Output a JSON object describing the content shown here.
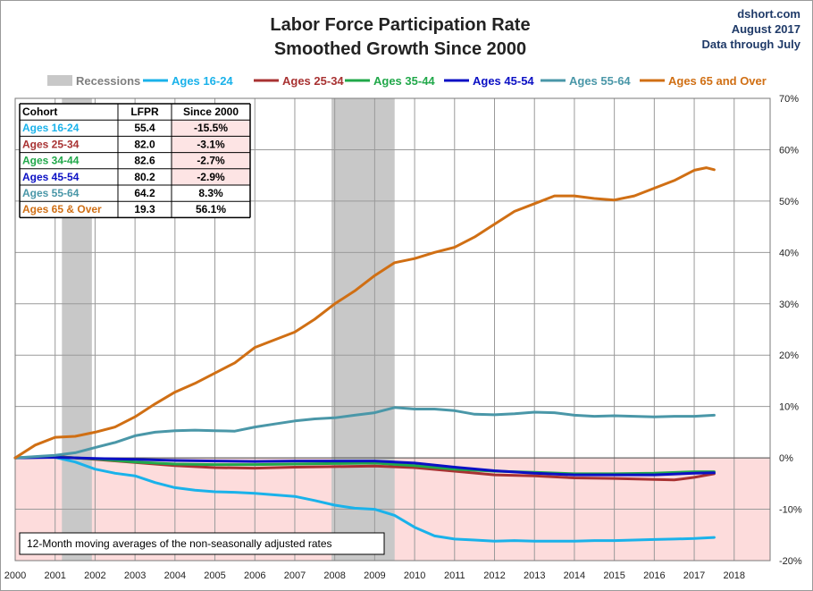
{
  "chart_data": {
    "type": "line",
    "title": "Labor Force Participation Rate",
    "subtitle": "Smoothed Growth Since 2000",
    "source": [
      "dshort.com",
      "August 2017",
      "Data through July"
    ],
    "xlim": [
      2000,
      2018.9
    ],
    "ylim": [
      -20,
      70
    ],
    "x_ticks": [
      2000,
      2001,
      2002,
      2003,
      2004,
      2005,
      2006,
      2007,
      2008,
      2009,
      2010,
      2011,
      2012,
      2013,
      2014,
      2015,
      2016,
      2017,
      2018
    ],
    "x_tick_labels": [
      "2000",
      "2001",
      "2002",
      "2003",
      "2004",
      "2005",
      "2006",
      "2007",
      "2008",
      "2009",
      "2010",
      "2011",
      "2012",
      "2013",
      "2014",
      "2015",
      "2016",
      "2017",
      "2018"
    ],
    "y_ticks": [
      -20,
      -10,
      0,
      10,
      20,
      30,
      40,
      50,
      60,
      70
    ],
    "y_tick_labels": [
      "-20%",
      "-10%",
      "0%",
      "10%",
      "20%",
      "30%",
      "40%",
      "50%",
      "60%",
      "70%"
    ],
    "grid": true,
    "negative_shading_color": "#fddcdc",
    "recessions": {
      "label": "Recessions",
      "color": "#c8c8c8",
      "periods": [
        [
          2001.17,
          2001.92
        ],
        [
          2007.92,
          2009.5
        ]
      ]
    },
    "series": [
      {
        "name": "Ages 16-24",
        "color": "#1ab2ea",
        "points": [
          [
            2000,
            0
          ],
          [
            2000.5,
            0.2
          ],
          [
            2001,
            0.1
          ],
          [
            2001.5,
            -0.8
          ],
          [
            2002,
            -2.2
          ],
          [
            2002.5,
            -3
          ],
          [
            2003,
            -3.5
          ],
          [
            2003.5,
            -4.8
          ],
          [
            2004,
            -5.8
          ],
          [
            2004.5,
            -6.3
          ],
          [
            2005,
            -6.6
          ],
          [
            2005.5,
            -6.7
          ],
          [
            2006,
            -6.9
          ],
          [
            2006.5,
            -7.2
          ],
          [
            2007,
            -7.5
          ],
          [
            2007.5,
            -8.3
          ],
          [
            2008,
            -9.2
          ],
          [
            2008.5,
            -9.8
          ],
          [
            2009,
            -10
          ],
          [
            2009.5,
            -11.2
          ],
          [
            2010,
            -13.5
          ],
          [
            2010.5,
            -15.2
          ],
          [
            2011,
            -15.8
          ],
          [
            2011.5,
            -16
          ],
          [
            2012,
            -16.2
          ],
          [
            2012.5,
            -16.1
          ],
          [
            2013,
            -16.2
          ],
          [
            2013.5,
            -16.2
          ],
          [
            2014,
            -16.2
          ],
          [
            2014.5,
            -16.1
          ],
          [
            2015,
            -16.1
          ],
          [
            2015.5,
            -16
          ],
          [
            2016,
            -15.9
          ],
          [
            2016.5,
            -15.8
          ],
          [
            2017,
            -15.7
          ],
          [
            2017.5,
            -15.5
          ]
        ]
      },
      {
        "name": "Ages 25-34",
        "color": "#a83232",
        "points": [
          [
            2000,
            0
          ],
          [
            2001,
            0.3
          ],
          [
            2002,
            -0.3
          ],
          [
            2003,
            -0.9
          ],
          [
            2004,
            -1.5
          ],
          [
            2005,
            -1.9
          ],
          [
            2006,
            -2
          ],
          [
            2007,
            -1.8
          ],
          [
            2008,
            -1.7
          ],
          [
            2009,
            -1.6
          ],
          [
            2010,
            -1.9
          ],
          [
            2011,
            -2.6
          ],
          [
            2012,
            -3.3
          ],
          [
            2013,
            -3.5
          ],
          [
            2014,
            -3.9
          ],
          [
            2015,
            -4
          ],
          [
            2016,
            -4.2
          ],
          [
            2016.5,
            -4.3
          ],
          [
            2017,
            -3.8
          ],
          [
            2017.5,
            -3.1
          ]
        ]
      },
      {
        "name": "Ages 35-44",
        "color": "#21a84a",
        "points": [
          [
            2000,
            0
          ],
          [
            2001,
            0.2
          ],
          [
            2002,
            -0.2
          ],
          [
            2003,
            -0.8
          ],
          [
            2004,
            -1.2
          ],
          [
            2005,
            -1.3
          ],
          [
            2006,
            -1.3
          ],
          [
            2007,
            -1.2
          ],
          [
            2008,
            -1.1
          ],
          [
            2009,
            -1
          ],
          [
            2010,
            -1.5
          ],
          [
            2011,
            -2.2
          ],
          [
            2012,
            -2.6
          ],
          [
            2013,
            -2.8
          ],
          [
            2014,
            -3.1
          ],
          [
            2015,
            -3.1
          ],
          [
            2016,
            -3
          ],
          [
            2017,
            -2.7
          ],
          [
            2017.5,
            -2.7
          ]
        ]
      },
      {
        "name": "Ages 45-54",
        "color": "#0b10c4",
        "points": [
          [
            2000,
            0
          ],
          [
            2001,
            0.1
          ],
          [
            2002,
            -0.1
          ],
          [
            2003,
            -0.3
          ],
          [
            2004,
            -0.5
          ],
          [
            2005,
            -0.6
          ],
          [
            2006,
            -0.7
          ],
          [
            2007,
            -0.6
          ],
          [
            2008,
            -0.6
          ],
          [
            2009,
            -0.6
          ],
          [
            2010,
            -1
          ],
          [
            2011,
            -1.8
          ],
          [
            2012,
            -2.5
          ],
          [
            2013,
            -3
          ],
          [
            2014,
            -3.3
          ],
          [
            2015,
            -3.3
          ],
          [
            2016,
            -3.3
          ],
          [
            2017,
            -3
          ],
          [
            2017.5,
            -2.9
          ]
        ]
      },
      {
        "name": "Ages 55-64",
        "color": "#4a97a8",
        "points": [
          [
            2000,
            0
          ],
          [
            2001,
            0.5
          ],
          [
            2001.5,
            1
          ],
          [
            2002,
            2
          ],
          [
            2002.5,
            3
          ],
          [
            2003,
            4.3
          ],
          [
            2003.5,
            5
          ],
          [
            2004,
            5.3
          ],
          [
            2004.5,
            5.4
          ],
          [
            2005,
            5.3
          ],
          [
            2005.5,
            5.2
          ],
          [
            2006,
            6
          ],
          [
            2006.5,
            6.6
          ],
          [
            2007,
            7.2
          ],
          [
            2007.5,
            7.6
          ],
          [
            2008,
            7.8
          ],
          [
            2008.5,
            8.3
          ],
          [
            2009,
            8.8
          ],
          [
            2009.5,
            9.8
          ],
          [
            2010,
            9.5
          ],
          [
            2010.5,
            9.5
          ],
          [
            2011,
            9.2
          ],
          [
            2011.5,
            8.5
          ],
          [
            2012,
            8.4
          ],
          [
            2012.5,
            8.6
          ],
          [
            2013,
            8.9
          ],
          [
            2013.5,
            8.8
          ],
          [
            2014,
            8.3
          ],
          [
            2014.5,
            8.1
          ],
          [
            2015,
            8.2
          ],
          [
            2015.5,
            8.1
          ],
          [
            2016,
            8
          ],
          [
            2016.5,
            8.1
          ],
          [
            2017,
            8.1
          ],
          [
            2017.5,
            8.3
          ]
        ]
      },
      {
        "name": "Ages 65 and Over",
        "color": "#d06f14",
        "points": [
          [
            2000,
            0
          ],
          [
            2000.5,
            2.5
          ],
          [
            2001,
            4
          ],
          [
            2001.5,
            4.2
          ],
          [
            2002,
            5
          ],
          [
            2002.5,
            6
          ],
          [
            2003,
            8
          ],
          [
            2003.5,
            10.5
          ],
          [
            2004,
            12.8
          ],
          [
            2004.5,
            14.5
          ],
          [
            2005,
            16.5
          ],
          [
            2005.5,
            18.5
          ],
          [
            2006,
            21.5
          ],
          [
            2006.5,
            23
          ],
          [
            2007,
            24.5
          ],
          [
            2007.5,
            27
          ],
          [
            2008,
            30
          ],
          [
            2008.5,
            32.5
          ],
          [
            2009,
            35.5
          ],
          [
            2009.5,
            38
          ],
          [
            2010,
            38.8
          ],
          [
            2010.5,
            40
          ],
          [
            2011,
            41
          ],
          [
            2011.5,
            43
          ],
          [
            2012,
            45.5
          ],
          [
            2012.5,
            48
          ],
          [
            2013,
            49.5
          ],
          [
            2013.5,
            51
          ],
          [
            2014,
            51
          ],
          [
            2014.5,
            50.5
          ],
          [
            2015,
            50.2
          ],
          [
            2015.5,
            51
          ],
          [
            2016,
            52.5
          ],
          [
            2016.5,
            54
          ],
          [
            2017,
            56
          ],
          [
            2017.3,
            56.5
          ],
          [
            2017.5,
            56.1
          ]
        ]
      }
    ],
    "table": {
      "headers": [
        "Cohort",
        "LFPR",
        "Since 2000"
      ],
      "rows": [
        {
          "cohort": "Ages 16-24",
          "lfpr": "55.4",
          "since": "-15.5%",
          "color": "#1ab2ea",
          "negative": true
        },
        {
          "cohort": "Ages 25-34",
          "lfpr": "82.0",
          "since": "-3.1%",
          "color": "#a83232",
          "negative": true
        },
        {
          "cohort": "Ages 34-44",
          "lfpr": "82.6",
          "since": "-2.7%",
          "color": "#21a84a",
          "negative": true
        },
        {
          "cohort": "Ages 45-54",
          "lfpr": "80.2",
          "since": "-2.9%",
          "color": "#0b10c4",
          "negative": true
        },
        {
          "cohort": "Ages 55-64",
          "lfpr": "64.2",
          "since": "8.3%",
          "color": "#4a97a8",
          "negative": false
        },
        {
          "cohort": "Ages 65  & Over",
          "lfpr": "19.3",
          "since": "56.1%",
          "color": "#d06f14",
          "negative": false
        }
      ]
    },
    "note": "12-Month moving  averages of the non-seasonally adjusted rates"
  }
}
